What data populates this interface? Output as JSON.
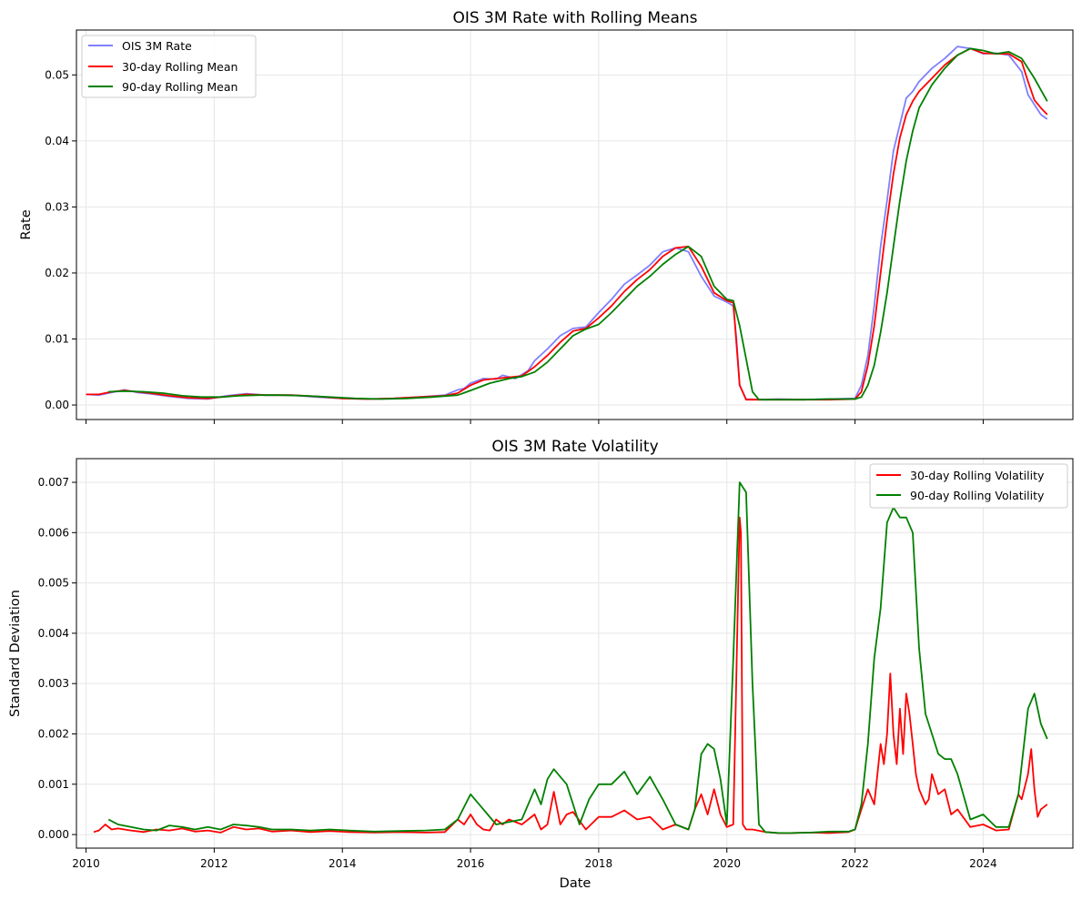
{
  "chart_data": [
    {
      "type": "line",
      "title": "OIS 3M Rate with Rolling Means",
      "xlabel": "",
      "ylabel": "Rate",
      "xlim": [
        2009.85,
        2025.4
      ],
      "ylim": [
        -0.0022,
        0.0568
      ],
      "grid": true,
      "legend_position": "top-left",
      "x_ticks": [
        2010,
        2012,
        2014,
        2016,
        2018,
        2020,
        2022,
        2024
      ],
      "x_tick_labels": [
        "",
        "",
        "",
        "",
        "",
        "",
        "",
        ""
      ],
      "y_ticks": [
        0.0,
        0.01,
        0.02,
        0.03,
        0.04,
        0.05
      ],
      "y_tick_labels": [
        "0.00",
        "0.01",
        "0.02",
        "0.03",
        "0.04",
        "0.05"
      ],
      "series": [
        {
          "name": "OIS 3M Rate",
          "color": "#7f7fff",
          "x": [
            2010.0,
            2010.2,
            2010.4,
            2010.6,
            2010.8,
            2011.0,
            2011.3,
            2011.6,
            2011.9,
            2012.2,
            2012.5,
            2012.8,
            2013.2,
            2013.6,
            2014.0,
            2014.4,
            2014.8,
            2015.2,
            2015.6,
            2015.8,
            2015.9,
            2016.0,
            2016.2,
            2016.4,
            2016.5,
            2016.7,
            2016.9,
            2017.0,
            2017.2,
            2017.4,
            2017.6,
            2017.8,
            2018.0,
            2018.2,
            2018.4,
            2018.6,
            2018.8,
            2019.0,
            2019.2,
            2019.4,
            2019.6,
            2019.8,
            2020.0,
            2020.1,
            2020.15,
            2020.2,
            2020.3,
            2020.5,
            2020.8,
            2021.2,
            2021.6,
            2022.0,
            2022.1,
            2022.2,
            2022.3,
            2022.4,
            2022.5,
            2022.6,
            2022.7,
            2022.8,
            2022.9,
            2023.0,
            2023.2,
            2023.4,
            2023.6,
            2023.8,
            2024.0,
            2024.2,
            2024.4,
            2024.6,
            2024.7,
            2024.8,
            2024.9,
            2025.0
          ],
          "values": [
            0.0016,
            0.0015,
            0.0019,
            0.0023,
            0.0019,
            0.0017,
            0.0013,
            0.001,
            0.0009,
            0.0014,
            0.0017,
            0.0015,
            0.0015,
            0.0012,
            0.001,
            0.0009,
            0.001,
            0.0012,
            0.0015,
            0.0023,
            0.0025,
            0.0033,
            0.004,
            0.0039,
            0.0045,
            0.004,
            0.0052,
            0.0067,
            0.0085,
            0.0105,
            0.0116,
            0.0118,
            0.014,
            0.016,
            0.0183,
            0.0197,
            0.0212,
            0.0232,
            0.0238,
            0.0232,
            0.0195,
            0.0165,
            0.0156,
            0.015,
            0.01,
            0.003,
            0.0009,
            0.0008,
            0.0009,
            0.0008,
            0.0009,
            0.001,
            0.003,
            0.0075,
            0.015,
            0.024,
            0.031,
            0.0385,
            0.0425,
            0.0465,
            0.0475,
            0.049,
            0.051,
            0.0525,
            0.0543,
            0.054,
            0.0532,
            0.0533,
            0.053,
            0.0505,
            0.047,
            0.0455,
            0.044,
            0.0433
          ]
        },
        {
          "name": "30-day Rolling Mean",
          "color": "#ff0000",
          "x": [
            2010.0,
            2010.2,
            2010.4,
            2010.6,
            2010.8,
            2011.0,
            2011.3,
            2011.6,
            2011.9,
            2012.2,
            2012.5,
            2012.8,
            2013.2,
            2013.6,
            2014.0,
            2014.4,
            2014.8,
            2015.2,
            2015.6,
            2015.8,
            2016.0,
            2016.2,
            2016.4,
            2016.6,
            2016.8,
            2017.0,
            2017.2,
            2017.4,
            2017.6,
            2017.8,
            2018.0,
            2018.2,
            2018.4,
            2018.6,
            2018.8,
            2019.0,
            2019.2,
            2019.4,
            2019.6,
            2019.8,
            2020.0,
            2020.1,
            2020.2,
            2020.3,
            2020.5,
            2020.8,
            2021.2,
            2021.6,
            2022.0,
            2022.1,
            2022.2,
            2022.3,
            2022.4,
            2022.5,
            2022.6,
            2022.7,
            2022.8,
            2022.9,
            2023.0,
            2023.2,
            2023.4,
            2023.6,
            2023.8,
            2024.0,
            2024.2,
            2024.4,
            2024.6,
            2024.7,
            2024.8,
            2024.9,
            2025.0
          ],
          "values": [
            0.0016,
            0.0016,
            0.002,
            0.0022,
            0.002,
            0.0018,
            0.0014,
            0.0011,
            0.001,
            0.0013,
            0.0016,
            0.0015,
            0.0015,
            0.0013,
            0.001,
            0.0009,
            0.001,
            0.0012,
            0.0014,
            0.0018,
            0.003,
            0.0038,
            0.004,
            0.0042,
            0.0044,
            0.0058,
            0.0075,
            0.0095,
            0.0112,
            0.0116,
            0.0132,
            0.015,
            0.0172,
            0.019,
            0.0205,
            0.0225,
            0.0238,
            0.024,
            0.021,
            0.017,
            0.0158,
            0.0155,
            0.003,
            0.0008,
            0.0008,
            0.0008,
            0.0008,
            0.0008,
            0.0009,
            0.002,
            0.006,
            0.012,
            0.02,
            0.028,
            0.035,
            0.0405,
            0.044,
            0.046,
            0.0475,
            0.0495,
            0.0515,
            0.053,
            0.054,
            0.0533,
            0.0532,
            0.0532,
            0.052,
            0.049,
            0.0462,
            0.045,
            0.044
          ]
        },
        {
          "name": "90-day Rolling Mean",
          "color": "#008000",
          "x": [
            2010.35,
            2010.6,
            2010.9,
            2011.2,
            2011.5,
            2011.8,
            2012.1,
            2012.4,
            2012.7,
            2013.0,
            2013.4,
            2013.8,
            2014.2,
            2014.6,
            2015.0,
            2015.4,
            2015.8,
            2016.0,
            2016.3,
            2016.6,
            2016.8,
            2017.0,
            2017.2,
            2017.4,
            2017.6,
            2017.8,
            2018.0,
            2018.2,
            2018.4,
            2018.6,
            2018.8,
            2019.0,
            2019.2,
            2019.4,
            2019.6,
            2019.8,
            2020.0,
            2020.1,
            2020.2,
            2020.3,
            2020.4,
            2020.5,
            2020.8,
            2021.2,
            2021.6,
            2022.0,
            2022.1,
            2022.2,
            2022.3,
            2022.4,
            2022.5,
            2022.6,
            2022.7,
            2022.8,
            2022.9,
            2023.0,
            2023.2,
            2023.4,
            2023.6,
            2023.8,
            2024.0,
            2024.2,
            2024.4,
            2024.6,
            2024.8,
            2025.0
          ],
          "values": [
            0.002,
            0.0021,
            0.002,
            0.0018,
            0.0014,
            0.0012,
            0.0012,
            0.0014,
            0.0015,
            0.0015,
            0.0014,
            0.0012,
            0.001,
            0.0009,
            0.001,
            0.0012,
            0.0015,
            0.0022,
            0.0033,
            0.004,
            0.0043,
            0.005,
            0.0065,
            0.0085,
            0.0105,
            0.0115,
            0.0122,
            0.014,
            0.016,
            0.018,
            0.0195,
            0.0213,
            0.0228,
            0.024,
            0.0225,
            0.018,
            0.016,
            0.0158,
            0.012,
            0.007,
            0.002,
            0.0008,
            0.0008,
            0.0008,
            0.0009,
            0.0009,
            0.0012,
            0.003,
            0.006,
            0.011,
            0.017,
            0.024,
            0.031,
            0.037,
            0.0415,
            0.045,
            0.0485,
            0.051,
            0.053,
            0.054,
            0.0537,
            0.0532,
            0.0535,
            0.0525,
            0.0495,
            0.046
          ]
        }
      ]
    },
    {
      "type": "line",
      "title": "OIS 3M Rate Volatility",
      "xlabel": "Date",
      "ylabel": "Standard Deviation",
      "xlim": [
        2009.85,
        2025.4
      ],
      "ylim": [
        -0.00027,
        0.00747
      ],
      "grid": true,
      "legend_position": "top-right",
      "x_ticks": [
        2010,
        2012,
        2014,
        2016,
        2018,
        2020,
        2022,
        2024
      ],
      "x_tick_labels": [
        "2010",
        "2012",
        "2014",
        "2016",
        "2018",
        "2020",
        "2022",
        "2024"
      ],
      "y_ticks": [
        0.0,
        0.001,
        0.002,
        0.003,
        0.004,
        0.005,
        0.006,
        0.007
      ],
      "y_tick_labels": [
        "0.000",
        "0.001",
        "0.002",
        "0.003",
        "0.004",
        "0.005",
        "0.006",
        "0.007"
      ],
      "series": [
        {
          "name": "30-day Rolling Volatility",
          "color": "#ff0000",
          "x": [
            2010.12,
            2010.2,
            2010.3,
            2010.4,
            2010.5,
            2010.7,
            2010.9,
            2011.1,
            2011.3,
            2011.5,
            2011.7,
            2011.9,
            2012.1,
            2012.3,
            2012.5,
            2012.7,
            2012.9,
            2013.2,
            2013.5,
            2013.8,
            2014.1,
            2014.5,
            2014.9,
            2015.3,
            2015.6,
            2015.8,
            2015.9,
            2016.0,
            2016.1,
            2016.2,
            2016.3,
            2016.4,
            2016.5,
            2016.6,
            2016.8,
            2017.0,
            2017.1,
            2017.2,
            2017.3,
            2017.4,
            2017.5,
            2017.6,
            2017.8,
            2018.0,
            2018.2,
            2018.4,
            2018.6,
            2018.8,
            2019.0,
            2019.2,
            2019.4,
            2019.5,
            2019.6,
            2019.7,
            2019.8,
            2019.9,
            2020.0,
            2020.1,
            2020.2,
            2020.22,
            2020.25,
            2020.3,
            2020.4,
            2020.6,
            2020.8,
            2021.0,
            2021.3,
            2021.6,
            2021.9,
            2022.0,
            2022.1,
            2022.2,
            2022.3,
            2022.4,
            2022.45,
            2022.5,
            2022.55,
            2022.6,
            2022.65,
            2022.7,
            2022.75,
            2022.8,
            2022.85,
            2022.9,
            2022.95,
            2023.0,
            2023.1,
            2023.15,
            2023.2,
            2023.3,
            2023.4,
            2023.5,
            2023.6,
            2023.8,
            2024.0,
            2024.2,
            2024.4,
            2024.55,
            2024.6,
            2024.7,
            2024.75,
            2024.8,
            2024.85,
            2024.9,
            2025.0
          ],
          "values": [
            5e-05,
            8e-05,
            0.0002,
            0.0001,
            0.00012,
            8e-05,
            5e-05,
            0.0001,
            8e-05,
            0.00012,
            6e-05,
            8e-05,
            4e-05,
            0.00015,
            0.0001,
            0.00012,
            6e-05,
            8e-05,
            5e-05,
            7e-05,
            5e-05,
            4e-05,
            5e-05,
            4e-05,
            5e-05,
            0.0003,
            0.0002,
            0.0004,
            0.0002,
            0.0001,
            8e-05,
            0.0003,
            0.0002,
            0.0003,
            0.0002,
            0.0004,
            0.0001,
            0.0002,
            0.00085,
            0.0002,
            0.0004,
            0.00045,
            0.0001,
            0.00035,
            0.00035,
            0.00048,
            0.0003,
            0.00035,
            0.0001,
            0.0002,
            0.0001,
            0.0005,
            0.0008,
            0.0004,
            0.0009,
            0.0004,
            0.00015,
            0.0002,
            0.0063,
            0.006,
            0.0002,
            0.0001,
            0.0001,
            5e-05,
            3e-05,
            3e-05,
            4e-05,
            3e-05,
            5e-05,
            0.0001,
            0.0005,
            0.0009,
            0.0006,
            0.0018,
            0.0014,
            0.002,
            0.0032,
            0.002,
            0.0014,
            0.0025,
            0.0016,
            0.0028,
            0.0024,
            0.0018,
            0.0012,
            0.0009,
            0.0006,
            0.0007,
            0.0012,
            0.0008,
            0.0009,
            0.0004,
            0.0005,
            0.00015,
            0.0002,
            8e-05,
            0.0001,
            0.0008,
            0.0007,
            0.0012,
            0.0017,
            0.0009,
            0.00035,
            0.0005,
            0.0006
          ]
        },
        {
          "name": "90-day Rolling Volatility",
          "color": "#008000",
          "x": [
            2010.35,
            2010.5,
            2010.7,
            2010.9,
            2011.1,
            2011.3,
            2011.5,
            2011.7,
            2011.9,
            2012.1,
            2012.3,
            2012.5,
            2012.7,
            2012.9,
            2013.2,
            2013.5,
            2013.8,
            2014.1,
            2014.5,
            2014.9,
            2015.3,
            2015.6,
            2015.8,
            2016.0,
            2016.2,
            2016.4,
            2016.6,
            2016.8,
            2017.0,
            2017.1,
            2017.2,
            2017.3,
            2017.5,
            2017.7,
            2017.85,
            2018.0,
            2018.2,
            2018.4,
            2018.6,
            2018.8,
            2019.0,
            2019.2,
            2019.4,
            2019.5,
            2019.6,
            2019.7,
            2019.8,
            2019.9,
            2020.0,
            2020.1,
            2020.2,
            2020.3,
            2020.4,
            2020.5,
            2020.6,
            2020.8,
            2021.0,
            2021.3,
            2021.6,
            2021.9,
            2022.0,
            2022.1,
            2022.2,
            2022.3,
            2022.4,
            2022.5,
            2022.6,
            2022.7,
            2022.8,
            2022.9,
            2023.0,
            2023.1,
            2023.2,
            2023.3,
            2023.4,
            2023.5,
            2023.6,
            2023.8,
            2024.0,
            2024.2,
            2024.4,
            2024.55,
            2024.7,
            2024.8,
            2024.9,
            2025.0
          ],
          "values": [
            0.0003,
            0.0002,
            0.00015,
            0.0001,
            8e-05,
            0.00018,
            0.00015,
            0.0001,
            0.00015,
            0.0001,
            0.0002,
            0.00018,
            0.00015,
            0.0001,
            0.0001,
            8e-05,
            0.0001,
            8e-05,
            6e-05,
            7e-05,
            8e-05,
            0.0001,
            0.0003,
            0.0008,
            0.0005,
            0.0002,
            0.00025,
            0.0003,
            0.0009,
            0.0006,
            0.0011,
            0.0013,
            0.001,
            0.0002,
            0.0007,
            0.001,
            0.001,
            0.00125,
            0.0008,
            0.00115,
            0.0007,
            0.0002,
            0.0001,
            0.0005,
            0.0016,
            0.0018,
            0.0017,
            0.0011,
            0.0002,
            0.0035,
            0.007,
            0.0068,
            0.003,
            0.0002,
            5e-05,
            3e-05,
            3e-05,
            4e-05,
            6e-05,
            6e-05,
            0.0001,
            0.0006,
            0.0018,
            0.0035,
            0.0045,
            0.0062,
            0.0065,
            0.0063,
            0.0063,
            0.006,
            0.0037,
            0.0024,
            0.002,
            0.0016,
            0.0015,
            0.0015,
            0.0012,
            0.0003,
            0.0004,
            0.00015,
            0.00015,
            0.0008,
            0.0025,
            0.0028,
            0.0022,
            0.0019
          ]
        }
      ]
    }
  ]
}
